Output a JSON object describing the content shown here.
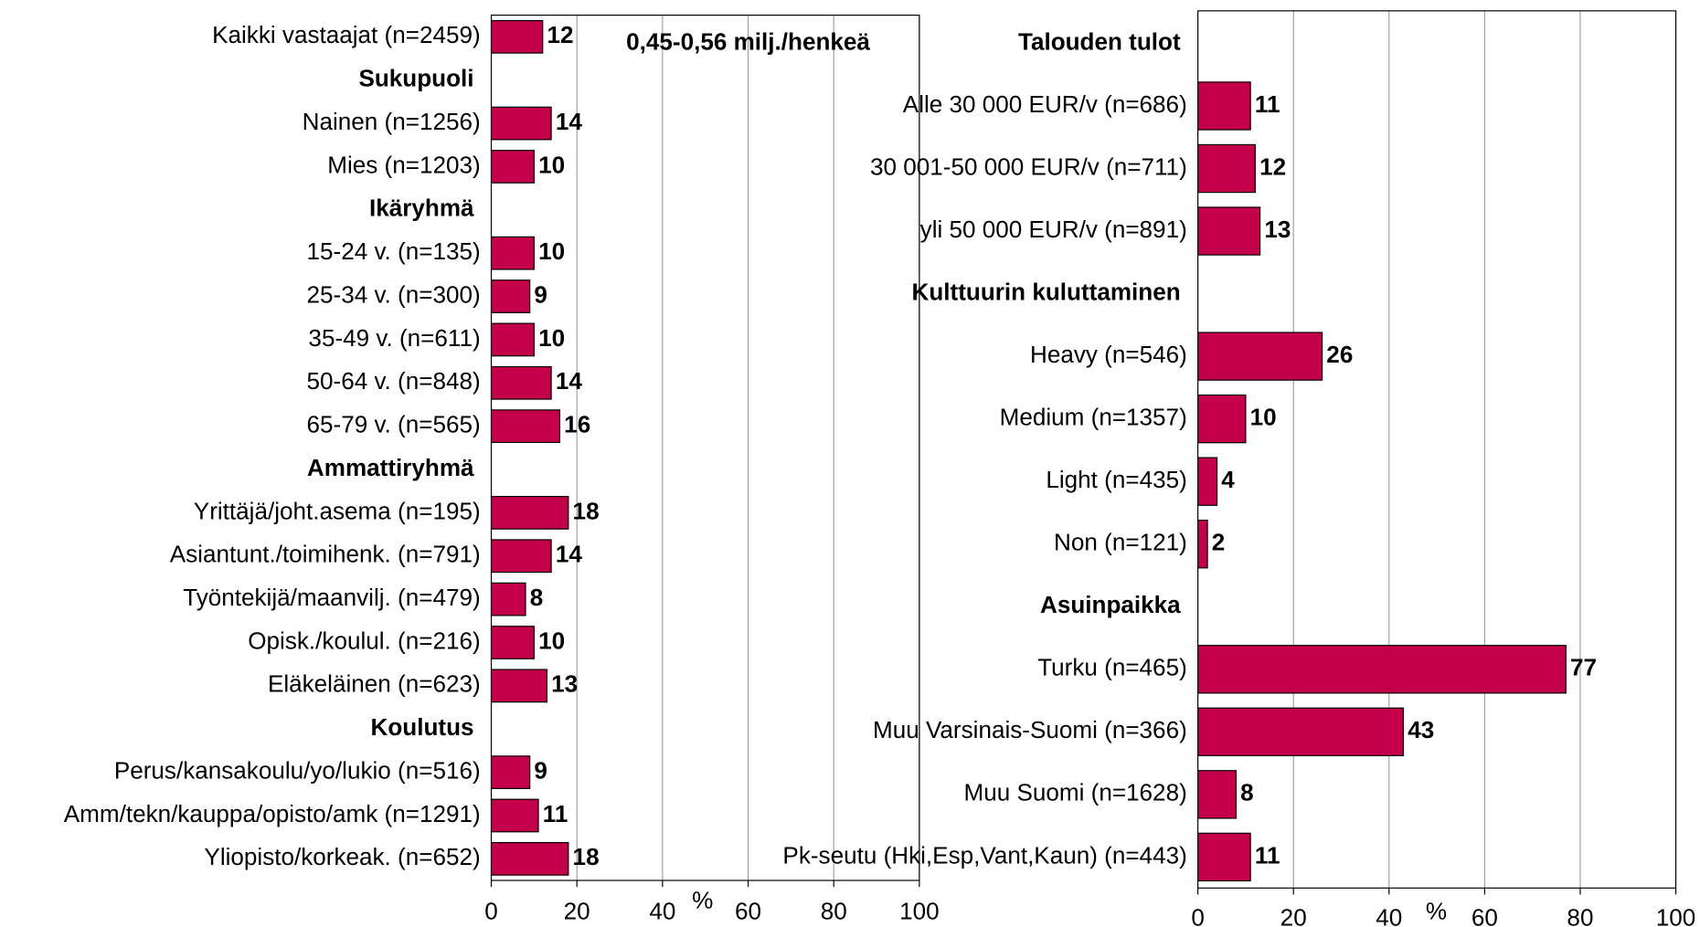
{
  "chart_data": [
    {
      "type": "bar",
      "orientation": "horizontal",
      "annotation": "0,45-0,56 milj./henkeä",
      "xlabel": "%",
      "categories": [
        "Kaikki vastaajat (n=2459)",
        "Sukupuoli",
        "Nainen (n=1256)",
        "Mies (n=1203)",
        "Ikäryhmä",
        "15-24 v. (n=135)",
        "25-34 v. (n=300)",
        "35-49 v. (n=611)",
        "50-64 v. (n=848)",
        "65-79 v. (n=565)",
        "Ammattiryhmä",
        "Yrittäjä/joht.asema (n=195)",
        "Asiantunt./toimihenk. (n=791)",
        "Työntekijä/maanvilj. (n=479)",
        "Opisk./koulul. (n=216)",
        "Eläkeläinen (n=623)",
        "Koulutus",
        "Perus/kansakoulu/yo/lukio (n=516)",
        "Amm/tekn/kauppa/opisto/amk (n=1291)",
        "Yliopisto/korkeak. (n=652)"
      ],
      "values": [
        12,
        null,
        14,
        10,
        null,
        10,
        9,
        10,
        14,
        16,
        null,
        18,
        14,
        8,
        10,
        13,
        null,
        9,
        11,
        18
      ],
      "xlim": [
        0,
        100
      ],
      "xticks": [
        0,
        20,
        40,
        60,
        80,
        100
      ],
      "grid": true,
      "color": "#c4004a"
    },
    {
      "type": "bar",
      "orientation": "horizontal",
      "xlabel": "%",
      "categories": [
        "Talouden tulot",
        "Alle 30 000 EUR/v (n=686)",
        "30 001-50 000 EUR/v (n=711)",
        "yli 50 000 EUR/v (n=891)",
        "Kulttuurin kuluttaminen",
        "Heavy (n=546)",
        "Medium (n=1357)",
        "Light (n=435)",
        "Non (n=121)",
        "Asuinpaikka",
        "Turku (n=465)",
        "Muu Varsinais-Suomi (n=366)",
        "Muu Suomi (n=1628)",
        "Pk-seutu (Hki,Esp,Vant,Kaun) (n=443)"
      ],
      "values": [
        null,
        11,
        12,
        13,
        null,
        26,
        10,
        4,
        2,
        null,
        77,
        43,
        8,
        11
      ],
      "xlim": [
        0,
        100
      ],
      "xticks": [
        0,
        20,
        40,
        60,
        80,
        100
      ],
      "grid": true,
      "color": "#c4004a"
    }
  ]
}
